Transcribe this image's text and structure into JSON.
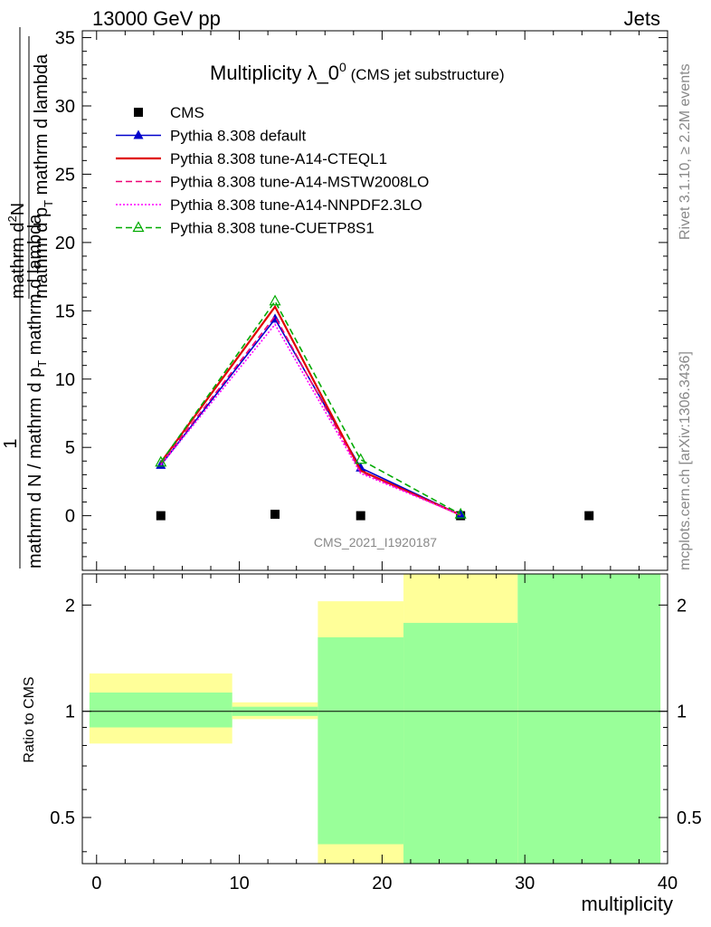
{
  "header": {
    "left": "13000 GeV pp",
    "right": "Jets"
  },
  "side_labels": {
    "rivet": "Rivet 3.1.10, ≥ 2.2M events",
    "mcplots": "mcplots.cern.ch [arXiv:1306.3436]"
  },
  "watermark": "CMS_2021_I1920187",
  "chart_data": [
    {
      "type": "line",
      "title_main": "Multiplicity λ_0",
      "title_sup": "0",
      "title_sub": "(CMS jet substructure)",
      "ylabel": {
        "a": "1",
        "b": "mathrm d N / mathrm d p",
        "b_sub": "T",
        "c": "mathrm d lambda",
        "num": "mathrm d",
        "num_sup": "2",
        "num_tail": "N",
        "den1": "mathrm d p",
        "den1_sub": "T",
        "den2": "mathrm d lambda"
      },
      "xlim": [
        -1,
        40
      ],
      "ylim": [
        -4,
        35.5
      ],
      "yticks": [
        "0",
        "5",
        "10",
        "15",
        "20",
        "25",
        "30",
        "35"
      ],
      "ytick_values": [
        0,
        5,
        10,
        15,
        20,
        25,
        30,
        35
      ],
      "series": [
        {
          "name": "CMS",
          "color": "#000000",
          "marker": "square",
          "line": "none",
          "x": [
            4.5,
            12.5,
            18.5,
            25.5,
            34.5
          ],
          "y": [
            0.0,
            0.1,
            0.0,
            0.0,
            0.0
          ]
        },
        {
          "name": "Pythia 8.308 default",
          "color": "#0000cc",
          "marker": "triangle",
          "line": "solid",
          "x": [
            4.5,
            12.5,
            18.5,
            25.5
          ],
          "y": [
            3.7,
            14.4,
            3.5,
            0.05
          ]
        },
        {
          "name": "Pythia 8.308 tune-A14-CTEQL1",
          "color": "#e00000",
          "marker": "none",
          "line": "solid",
          "x": [
            4.5,
            12.5,
            18.5,
            25.5
          ],
          "y": [
            3.9,
            15.3,
            3.3,
            0.05
          ]
        },
        {
          "name": "Pythia 8.308 tune-A14-MSTW2008LO",
          "color": "#ee0077",
          "marker": "none",
          "line": "dashed",
          "x": [
            4.5,
            12.5,
            18.5,
            25.5
          ],
          "y": [
            3.8,
            14.6,
            3.2,
            0.05
          ]
        },
        {
          "name": "Pythia 8.308 tune-A14-NNPDF2.3LO",
          "color": "#ff00ff",
          "marker": "none",
          "line": "dotted",
          "x": [
            4.5,
            12.5,
            18.5,
            25.5
          ],
          "y": [
            3.7,
            14.0,
            3.1,
            0.05
          ]
        },
        {
          "name": "Pythia 8.308 tune-CUETP8S1",
          "color": "#00aa00",
          "marker": "open-triangle",
          "line": "dashed",
          "x": [
            4.5,
            12.5,
            18.5,
            25.5
          ],
          "y": [
            3.9,
            15.7,
            4.1,
            0.1
          ]
        }
      ]
    },
    {
      "type": "area",
      "ylabel": "Ratio to CMS",
      "xlabel": "multiplicity",
      "scale": "log",
      "xlim": [
        -1,
        40
      ],
      "ylim": [
        0.37,
        2.45
      ],
      "yticks": [
        "0.5",
        "1",
        "2"
      ],
      "ytick_values": [
        0.5,
        1,
        2
      ],
      "xticks": [
        "0",
        "10",
        "20",
        "30",
        "40"
      ],
      "xtick_values": [
        0,
        10,
        20,
        30,
        40
      ],
      "reference": 1,
      "bands": [
        {
          "x0": -0.5,
          "x1": 9.5,
          "yellow": [
            0.81,
            1.28
          ],
          "green": [
            0.9,
            1.13
          ]
        },
        {
          "x0": 9.5,
          "x1": 15.5,
          "yellow": [
            0.95,
            1.06
          ],
          "green": [
            0.97,
            1.03
          ]
        },
        {
          "x0": 15.5,
          "x1": 21.5,
          "yellow": [
            0.37,
            2.05
          ],
          "green": [
            0.42,
            1.62
          ]
        },
        {
          "x0": 21.5,
          "x1": 29.5,
          "yellow": [
            0.37,
            2.45
          ],
          "green": [
            0.37,
            1.78
          ]
        },
        {
          "x0": 29.5,
          "x1": 39.5,
          "yellow": [
            0.37,
            2.45
          ],
          "green": [
            0.37,
            2.45
          ]
        }
      ],
      "colors": {
        "yellow": "#ffff99",
        "green": "#99ff99"
      }
    }
  ]
}
